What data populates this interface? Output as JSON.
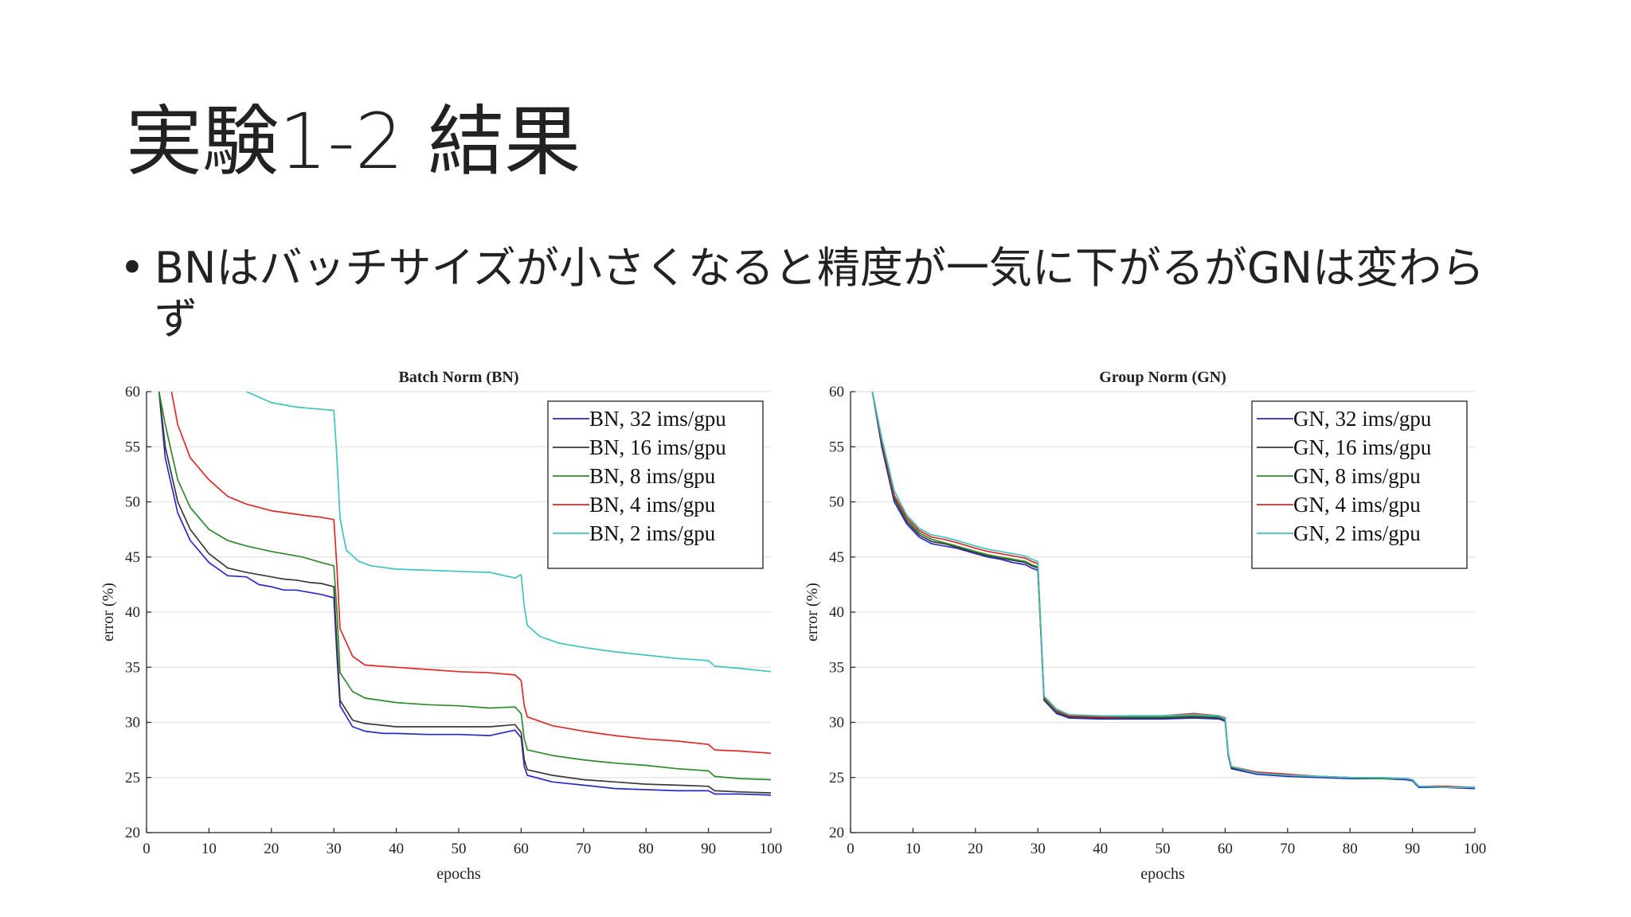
{
  "slide": {
    "title": "実験1-2 結果",
    "bullet": "BNはバッチサイズが小さくなると精度が一気に下がるがGNは変わらず"
  },
  "chart_data": [
    {
      "type": "line",
      "title": "Batch Norm (BN)",
      "xlabel": "epochs",
      "ylabel": "error (%)",
      "xlim": [
        0,
        100
      ],
      "ylim": [
        20,
        60
      ],
      "xticks": [
        0,
        10,
        20,
        30,
        40,
        50,
        60,
        70,
        80,
        90,
        100
      ],
      "yticks": [
        20,
        25,
        30,
        35,
        40,
        45,
        50,
        55,
        60
      ],
      "grid": true,
      "legend_position": "top-right",
      "series": [
        {
          "name": "BN, 32 ims/gpu",
          "color": "#2a2ac8",
          "x": [
            2,
            3,
            5,
            7,
            10,
            13,
            16,
            18,
            20,
            22,
            24,
            26,
            28,
            30,
            30.5,
            31,
            33,
            35,
            38,
            40,
            45,
            50,
            55,
            59,
            60,
            60.5,
            61,
            65,
            70,
            75,
            80,
            85,
            90,
            91,
            95,
            100
          ],
          "y": [
            60,
            54,
            49,
            46.5,
            44.5,
            43.3,
            43.2,
            42.5,
            42.3,
            42,
            42,
            41.8,
            41.6,
            41.3,
            36,
            31.5,
            29.6,
            29.2,
            29,
            29,
            28.9,
            28.9,
            28.8,
            29.3,
            28.6,
            26,
            25.2,
            24.6,
            24.3,
            24,
            23.9,
            23.8,
            23.8,
            23.5,
            23.5,
            23.4
          ]
        },
        {
          "name": "BN, 16 ims/gpu",
          "color": "#3a3a3a",
          "x": [
            2,
            3,
            5,
            7,
            10,
            13,
            16,
            20,
            22,
            24,
            26,
            28,
            30,
            30.5,
            31,
            33,
            35,
            40,
            45,
            50,
            55,
            59,
            60,
            60.5,
            61,
            65,
            70,
            75,
            80,
            85,
            90,
            91,
            95,
            100
          ],
          "y": [
            60,
            55,
            50,
            47.5,
            45.3,
            44,
            43.6,
            43.2,
            43,
            42.9,
            42.7,
            42.6,
            42.3,
            37,
            32,
            30.2,
            29.9,
            29.6,
            29.6,
            29.6,
            29.6,
            29.8,
            29.1,
            26.6,
            25.7,
            25.2,
            24.8,
            24.6,
            24.4,
            24.3,
            24.2,
            23.8,
            23.7,
            23.6
          ]
        },
        {
          "name": "BN, 8 ims/gpu",
          "color": "#2e8a2e",
          "x": [
            2,
            3,
            5,
            7,
            10,
            13,
            16,
            20,
            25,
            28,
            30,
            30.5,
            31,
            33,
            35,
            40,
            45,
            50,
            55,
            59,
            60,
            60.5,
            61,
            65,
            70,
            75,
            80,
            85,
            90,
            91,
            95,
            100
          ],
          "y": [
            60,
            57,
            52,
            49.5,
            47.5,
            46.5,
            46,
            45.5,
            45,
            44.5,
            44.2,
            40,
            34.5,
            32.8,
            32.2,
            31.8,
            31.6,
            31.5,
            31.3,
            31.4,
            30.8,
            28.5,
            27.5,
            27,
            26.6,
            26.3,
            26.1,
            25.8,
            25.6,
            25.1,
            24.9,
            24.8
          ]
        },
        {
          "name": "BN, 4 ims/gpu",
          "color": "#e02828",
          "x": [
            4,
            5,
            7,
            10,
            13,
            16,
            20,
            25,
            28,
            30,
            30.5,
            31,
            33,
            35,
            40,
            45,
            50,
            55,
            59,
            60,
            60.5,
            61,
            65,
            70,
            75,
            80,
            85,
            90,
            91,
            95,
            100
          ],
          "y": [
            60,
            57,
            54,
            52,
            50.5,
            49.8,
            49.2,
            48.8,
            48.6,
            48.4,
            44,
            38.5,
            36,
            35.2,
            35,
            34.8,
            34.6,
            34.5,
            34.3,
            33.8,
            31.5,
            30.5,
            29.7,
            29.2,
            28.8,
            28.5,
            28.3,
            28,
            27.5,
            27.4,
            27.2
          ]
        },
        {
          "name": "BN, 2 ims/gpu",
          "color": "#3ec3c0",
          "x": [
            16,
            18,
            20,
            22,
            24,
            26,
            28,
            30,
            30.5,
            31,
            32,
            34,
            36,
            40,
            45,
            50,
            55,
            59,
            60,
            60.5,
            61,
            63,
            66,
            70,
            75,
            80,
            85,
            90,
            91,
            95,
            100
          ],
          "y": [
            60,
            59.5,
            59,
            58.8,
            58.6,
            58.5,
            58.4,
            58.3,
            54,
            48.5,
            45.6,
            44.6,
            44.2,
            43.9,
            43.8,
            43.7,
            43.6,
            43.1,
            43.4,
            40.5,
            38.8,
            37.8,
            37.2,
            36.8,
            36.4,
            36.1,
            35.8,
            35.6,
            35.1,
            34.9,
            34.6
          ]
        }
      ]
    },
    {
      "type": "line",
      "title": "Group Norm (GN)",
      "xlabel": "epochs",
      "ylabel": "error (%)",
      "xlim": [
        0,
        100
      ],
      "ylim": [
        20,
        60
      ],
      "xticks": [
        0,
        10,
        20,
        30,
        40,
        50,
        60,
        70,
        80,
        90,
        100
      ],
      "yticks": [
        20,
        25,
        30,
        35,
        40,
        45,
        50,
        55,
        60
      ],
      "grid": true,
      "legend_position": "top-right",
      "series": [
        {
          "name": "GN, 32 ims/gpu",
          "color": "#2a2ac8",
          "x": [
            3.5,
            5,
            7,
            9,
            11,
            13,
            15,
            17,
            20,
            22,
            24,
            26,
            28,
            29,
            30,
            30.5,
            31,
            33,
            35,
            40,
            45,
            50,
            55,
            59,
            60,
            60.5,
            61,
            65,
            70,
            75,
            80,
            85,
            89,
            90,
            91,
            95,
            100
          ],
          "y": [
            60,
            55,
            50,
            48,
            46.8,
            46.2,
            46,
            45.8,
            45.3,
            45,
            44.8,
            44.5,
            44.3,
            44,
            43.8,
            38,
            32,
            30.8,
            30.4,
            30.3,
            30.3,
            30.3,
            30.4,
            30.3,
            30.1,
            27,
            25.8,
            25.3,
            25.1,
            25,
            24.9,
            24.9,
            24.8,
            24.7,
            24.1,
            24.1,
            24
          ]
        },
        {
          "name": "GN, 16 ims/gpu",
          "color": "#3a3a3a",
          "x": [
            3.5,
            5,
            7,
            9,
            11,
            13,
            15,
            17,
            20,
            22,
            24,
            26,
            28,
            29,
            30,
            30.5,
            31,
            33,
            35,
            40,
            45,
            50,
            55,
            59,
            60,
            60.5,
            61,
            65,
            70,
            75,
            80,
            85,
            89,
            90,
            91,
            95,
            100
          ],
          "y": [
            60,
            55.3,
            50.3,
            48.2,
            47,
            46.4,
            46.2,
            45.9,
            45.4,
            45.1,
            44.9,
            44.7,
            44.5,
            44.2,
            44,
            38,
            32.1,
            30.9,
            30.5,
            30.4,
            30.4,
            30.4,
            30.5,
            30.4,
            30.2,
            27,
            25.9,
            25.4,
            25.2,
            25.1,
            25,
            24.9,
            24.9,
            24.8,
            24.2,
            24.1,
            24.1
          ]
        },
        {
          "name": "GN, 8 ims/gpu",
          "color": "#2e8a2e",
          "x": [
            3.5,
            5,
            7,
            9,
            11,
            13,
            15,
            17,
            20,
            22,
            24,
            26,
            28,
            29,
            30,
            30.5,
            31,
            33,
            35,
            40,
            45,
            50,
            55,
            59,
            60,
            60.5,
            61,
            65,
            70,
            75,
            80,
            85,
            89,
            90,
            91,
            95,
            100
          ],
          "y": [
            60,
            55.5,
            50.5,
            48.4,
            47.2,
            46.6,
            46.3,
            46,
            45.5,
            45.2,
            45,
            44.8,
            44.6,
            44.3,
            44.1,
            38.2,
            32.2,
            31,
            30.6,
            30.5,
            30.5,
            30.5,
            30.6,
            30.5,
            30.3,
            27.1,
            26,
            25.4,
            25.2,
            25.1,
            25,
            24.9,
            24.9,
            24.8,
            24.2,
            24.2,
            24.1
          ]
        },
        {
          "name": "GN, 4 ims/gpu",
          "color": "#e02828",
          "x": [
            3.5,
            5,
            7,
            9,
            11,
            13,
            15,
            17,
            20,
            22,
            24,
            26,
            28,
            29,
            30,
            30.5,
            31,
            33,
            35,
            40,
            45,
            50,
            55,
            59,
            60,
            60.5,
            61,
            65,
            70,
            75,
            80,
            85,
            89,
            90,
            91,
            95,
            100
          ],
          "y": [
            60,
            55.6,
            50.6,
            48.6,
            47.4,
            46.8,
            46.6,
            46.3,
            45.8,
            45.5,
            45.3,
            45.1,
            44.9,
            44.6,
            44.4,
            38.3,
            32.3,
            31.1,
            30.6,
            30.5,
            30.6,
            30.6,
            30.8,
            30.6,
            30.4,
            27.2,
            26,
            25.5,
            25.3,
            25.1,
            25,
            25,
            24.9,
            24.8,
            24.2,
            24.2,
            24.1
          ]
        },
        {
          "name": "GN, 2 ims/gpu",
          "color": "#3ec3c0",
          "x": [
            3.5,
            5,
            7,
            9,
            11,
            13,
            15,
            17,
            20,
            22,
            24,
            26,
            28,
            29,
            30,
            30.5,
            31,
            33,
            35,
            40,
            45,
            50,
            55,
            59,
            60,
            60.5,
            61,
            65,
            70,
            75,
            80,
            85,
            89,
            90,
            91,
            95,
            100
          ],
          "y": [
            60,
            55.8,
            51,
            48.8,
            47.6,
            47,
            46.8,
            46.5,
            46,
            45.7,
            45.5,
            45.3,
            45.1,
            44.8,
            44.6,
            38.4,
            32.4,
            31.2,
            30.7,
            30.6,
            30.6,
            30.6,
            30.7,
            30.6,
            30.3,
            27.2,
            26,
            25.4,
            25.2,
            25.1,
            25,
            25,
            24.9,
            24.8,
            24.2,
            24.1,
            24.1
          ]
        }
      ]
    }
  ]
}
